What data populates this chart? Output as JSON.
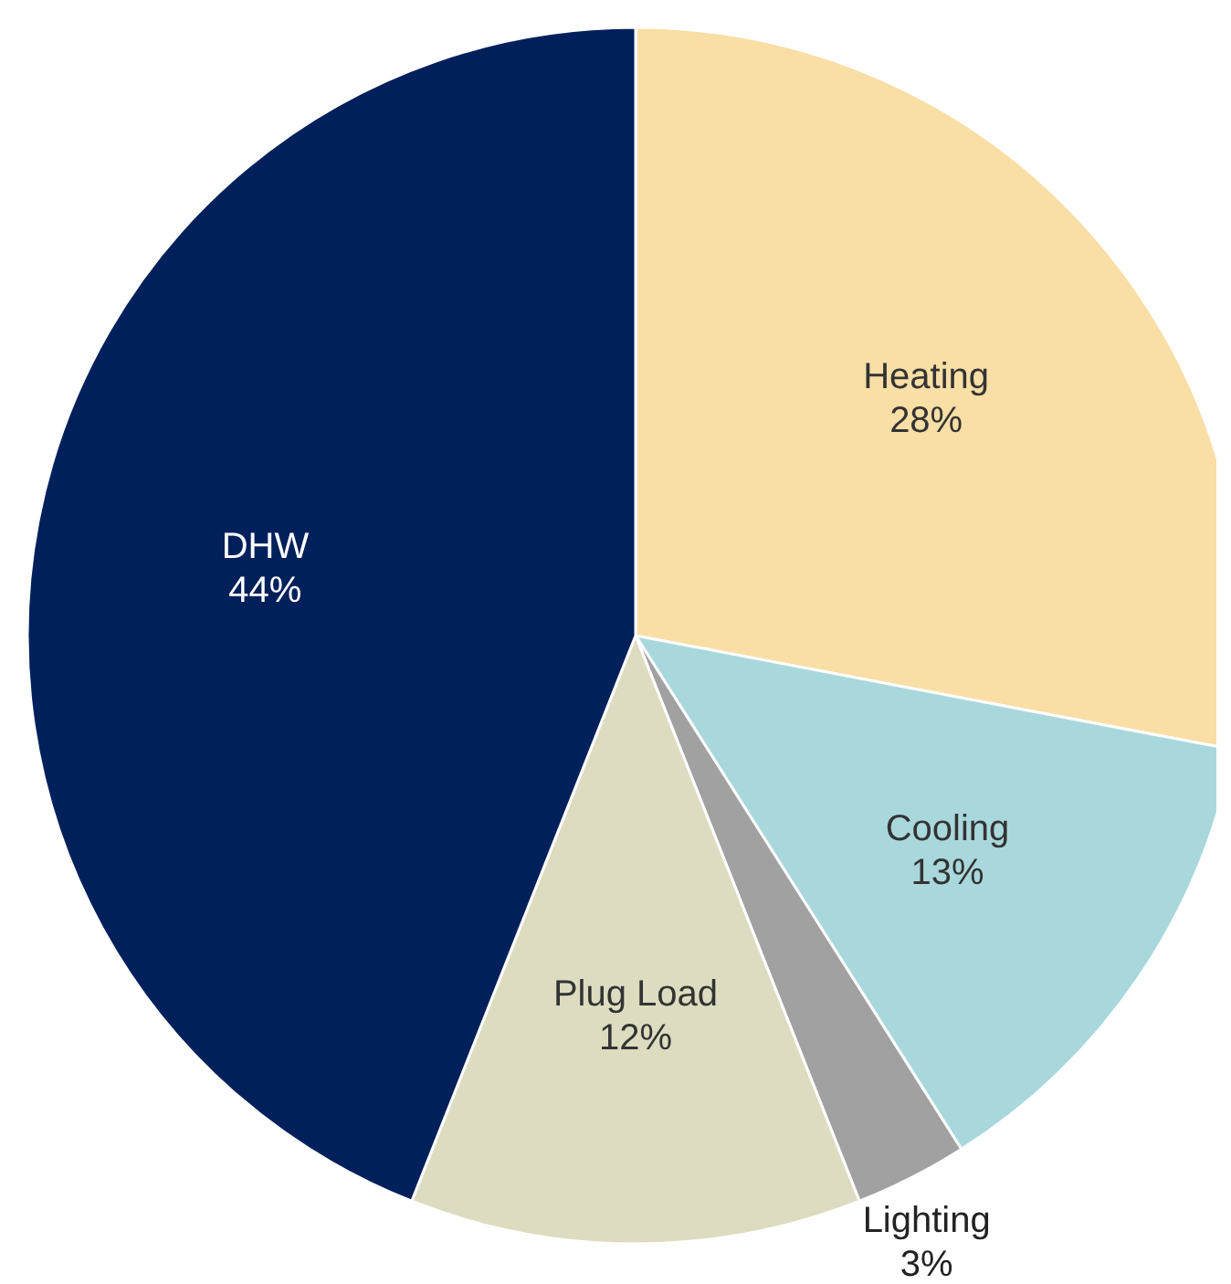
{
  "chart_data": {
    "type": "pie",
    "categories": [
      "Heating",
      "Cooling",
      "Lighting",
      "Plug Load",
      "DHW"
    ],
    "values": [
      28,
      13,
      3,
      12,
      44
    ],
    "value_labels": [
      "28%",
      "13%",
      "3%",
      "12%",
      "44%"
    ],
    "colors": [
      "#f9dea5",
      "#a9d8dc",
      "#a0a1a0",
      "#dedcc0",
      "#00205b"
    ]
  }
}
